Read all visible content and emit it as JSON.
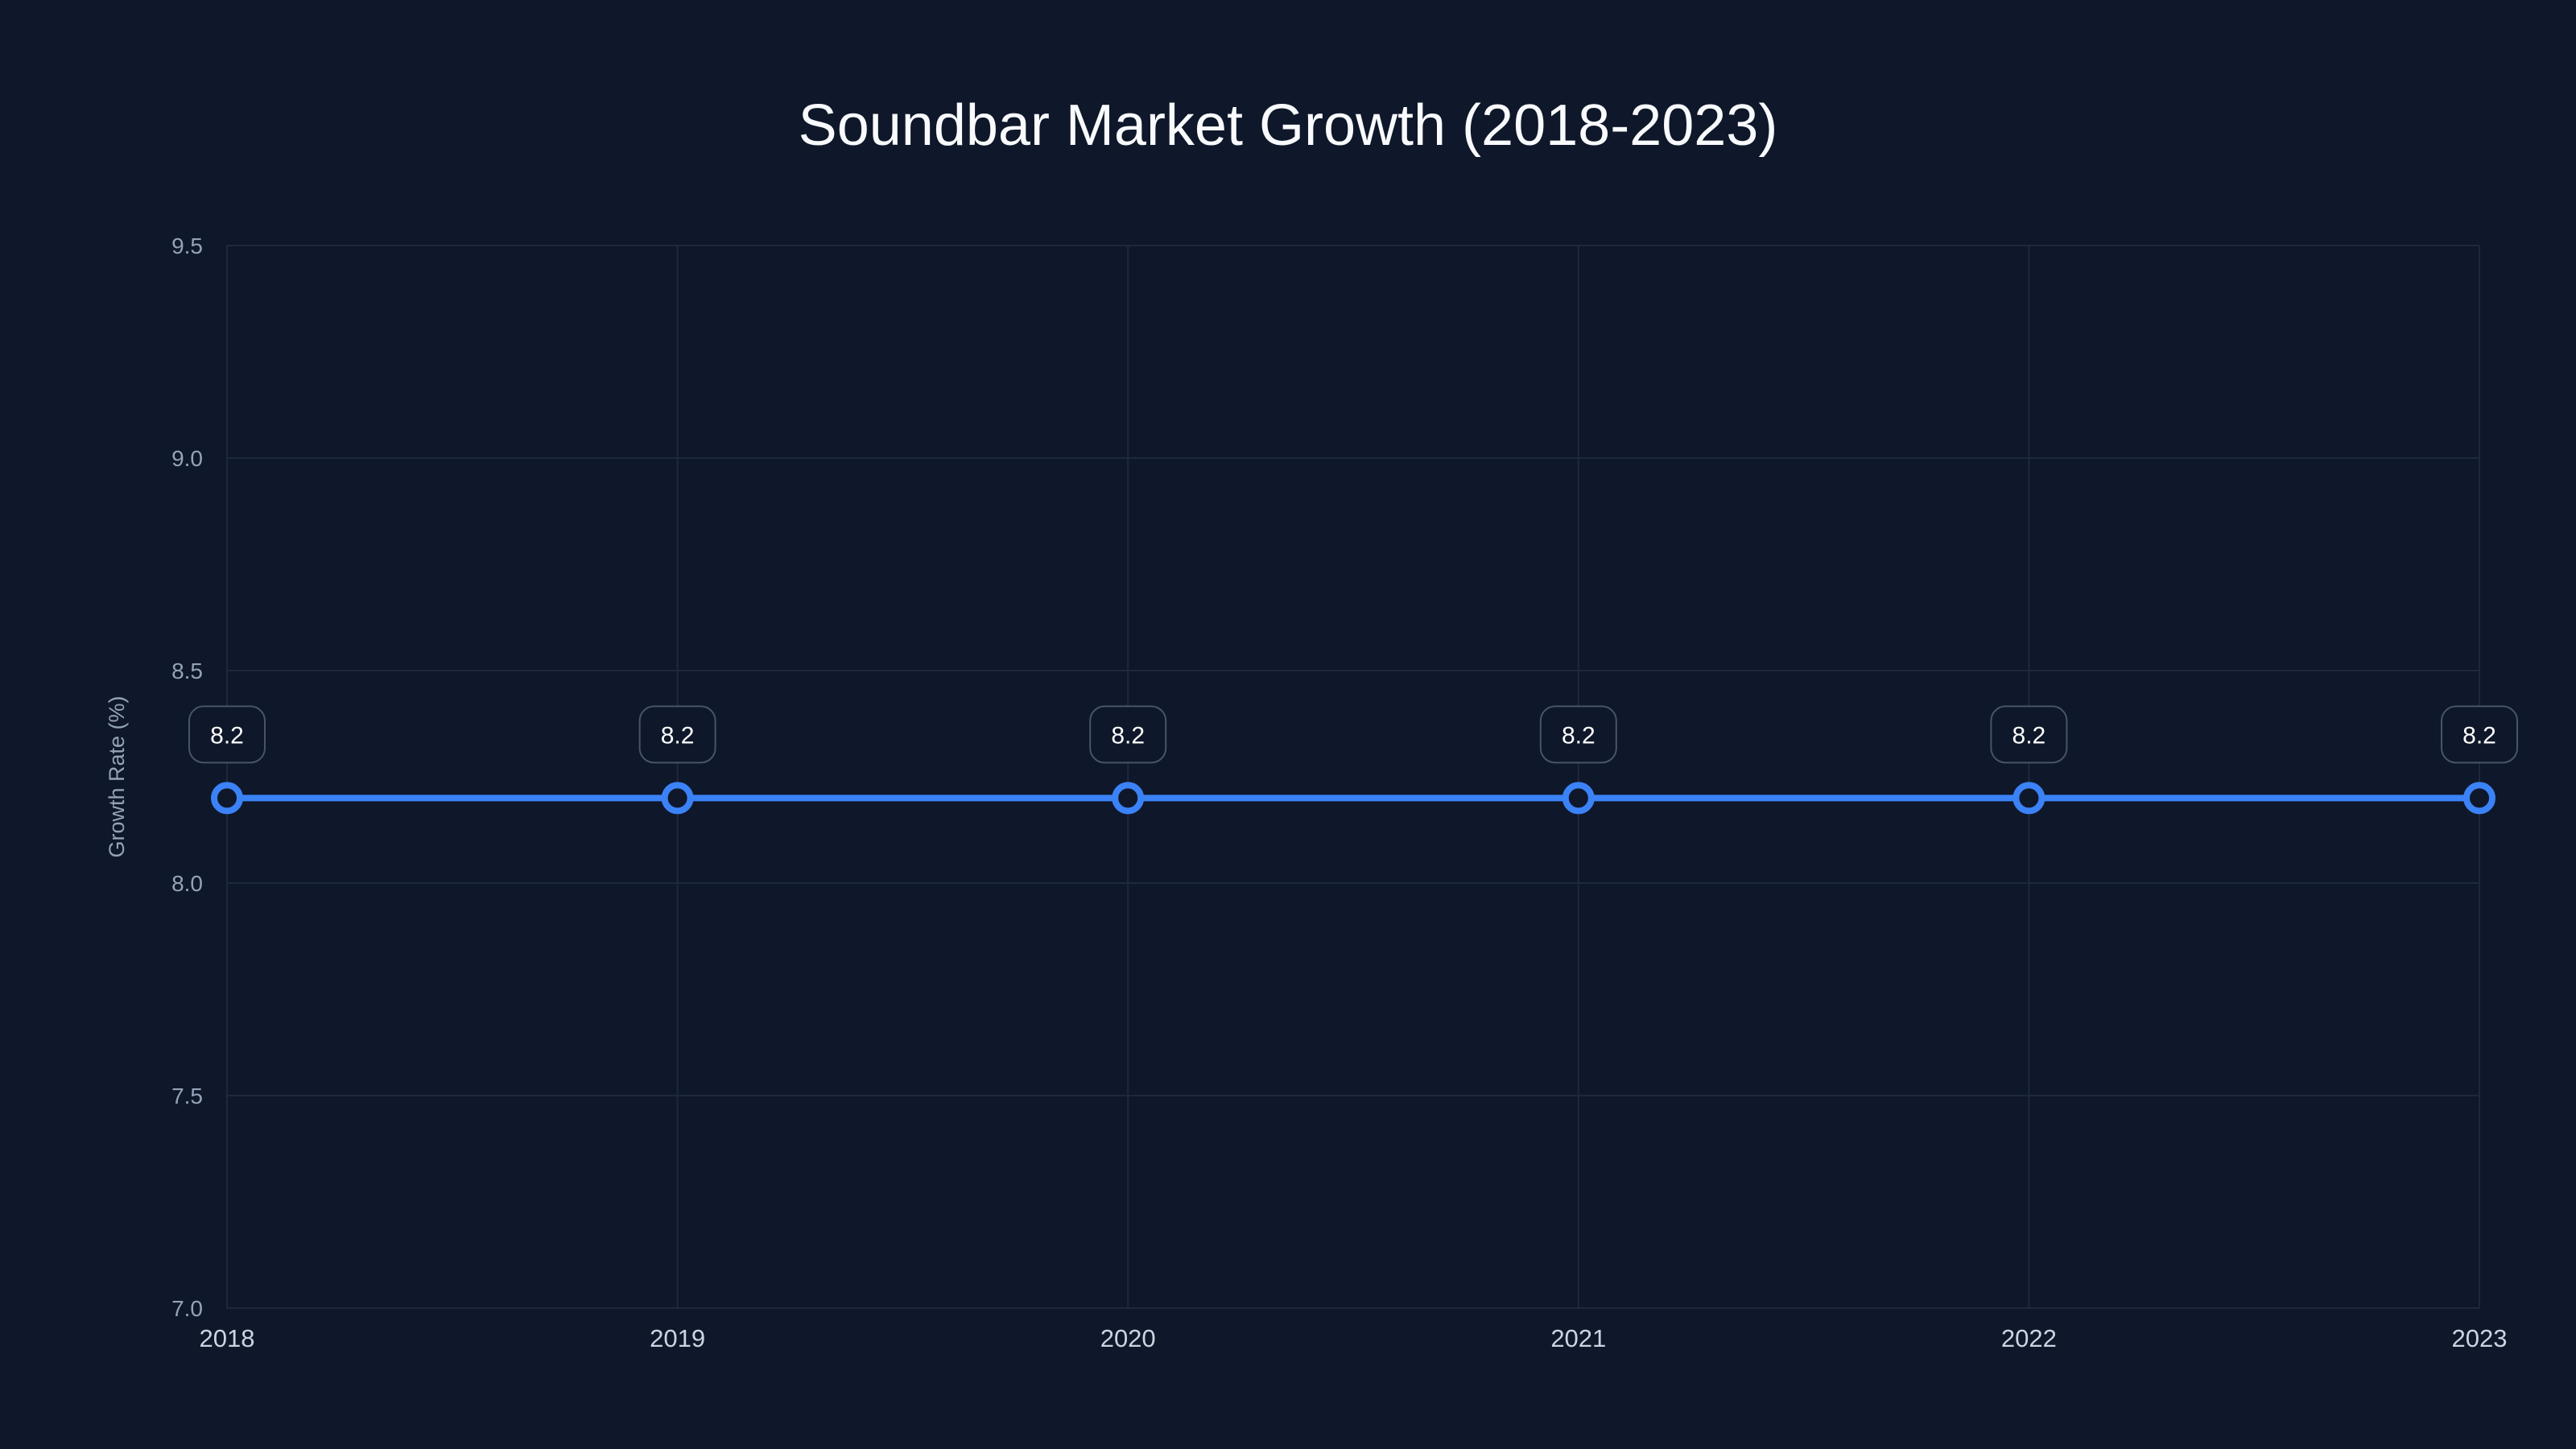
{
  "chart_data": {
    "type": "line",
    "title": "Soundbar Market Growth (2018-2023)",
    "xlabel": "",
    "ylabel": "Growth Rate (%)",
    "categories": [
      "2018",
      "2019",
      "2020",
      "2021",
      "2022",
      "2023"
    ],
    "series": [
      {
        "name": "Growth Rate (%)",
        "values": [
          8.2,
          8.2,
          8.2,
          8.2,
          8.2,
          8.2
        ],
        "color": "#3b82f6"
      }
    ],
    "data_labels": [
      "8.2",
      "8.2",
      "8.2",
      "8.2",
      "8.2",
      "8.2"
    ],
    "ylim": [
      7.0,
      9.5
    ],
    "yticks": [
      "7.0",
      "7.5",
      "8.0",
      "8.5",
      "9.0",
      "9.5"
    ],
    "grid": true,
    "legend": "none"
  },
  "colors": {
    "background": "#0f172a",
    "line": "#3b82f6",
    "grid": "#1e293b",
    "label_border": "#475569"
  }
}
